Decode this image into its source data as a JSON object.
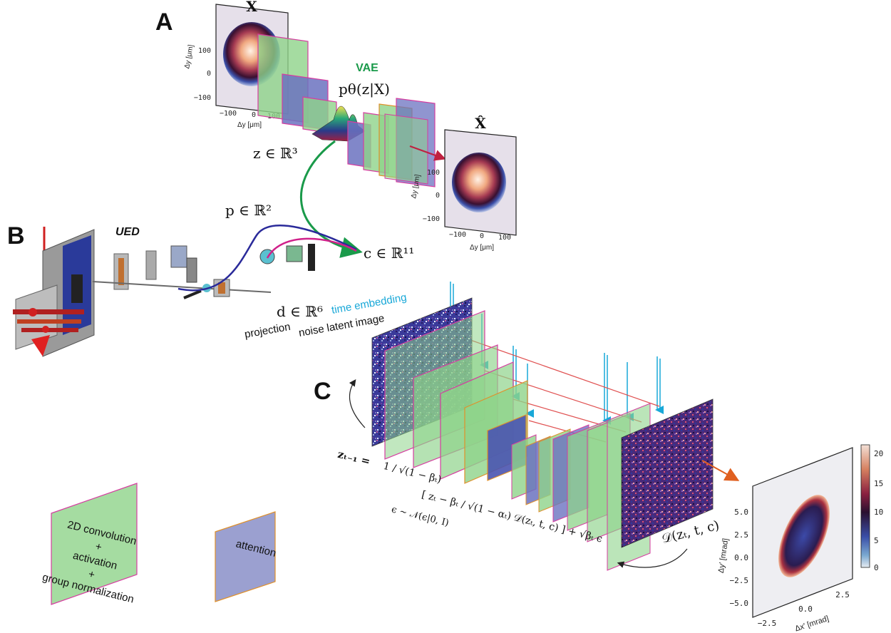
{
  "panels": {
    "a": "A",
    "b": "B",
    "c": "C"
  },
  "panel_a": {
    "input_label": "X",
    "output_label": "X̂",
    "vae_label": "VAE",
    "posterior": "pθ(z|X)",
    "latent": "z ∈ ℝ³",
    "input_plot": {
      "xlabel": "Δy [μm]",
      "ylabel": "Δy [μm]",
      "xticks": [
        "−100",
        "0",
        "100"
      ],
      "yticks": [
        "100",
        "0",
        "−100"
      ]
    },
    "output_plot": {
      "xlabel": "Δy [μm]",
      "ylabel": "Δy [μm]",
      "xticks": [
        "−100",
        "0",
        "100"
      ],
      "yticks": [
        "100",
        "0",
        "−100"
      ]
    }
  },
  "panel_b": {
    "ued_label": "UED",
    "p_label": "p ∈ ℝ²",
    "d_label": "d ∈ ℝ⁶",
    "projection_label": "projection",
    "c_label": "c ∈ ℝ¹¹"
  },
  "panel_c": {
    "time_embedding": "time embedding",
    "noise_label": "noise latent image",
    "zt_label": "zₜ",
    "update_lhs": "zₜ₋₁ =",
    "update_frac": "1 / √(1 − βₜ)",
    "update_bracket": "[ zₜ − βₜ / √(1 − αₜ) 𝒟(zₜ, t, c) ] + √βₜ ϵ",
    "noise_dist": "ϵ ∼ 𝒩(ϵ|0, I)",
    "denoiser": "𝒟(zₜ, t, c)",
    "output_plot": {
      "xlabel": "Δx′ [mrad]",
      "ylabel": "Δy′ [mrad]",
      "xticks": [
        "−2.5",
        "0.0",
        "2.5"
      ],
      "yticks": [
        "5.0",
        "2.5",
        "0.0",
        "−2.5",
        "−5.0"
      ],
      "colorbar_ticks": [
        "20",
        "15",
        "10",
        "5",
        "0"
      ]
    }
  },
  "legend": {
    "conv_label_1": "2D convolution",
    "conv_label_2": "+",
    "conv_label_3": "activation",
    "conv_label_4": "+",
    "conv_label_5": "group normalization",
    "attention_label": "attention"
  },
  "colors": {
    "conv": "#8ed38a",
    "attention": "#8a8fc8",
    "edge_magenta": "#d63ca0",
    "edge_orange": "#e0902a",
    "arrow_green": "#1a9a4a",
    "arrow_blue": "#2a2a9a",
    "arrow_magenta": "#d0208a",
    "cyan": "#19a8d8",
    "red_line": "#e05050",
    "orange_arrow": "#e06020"
  }
}
